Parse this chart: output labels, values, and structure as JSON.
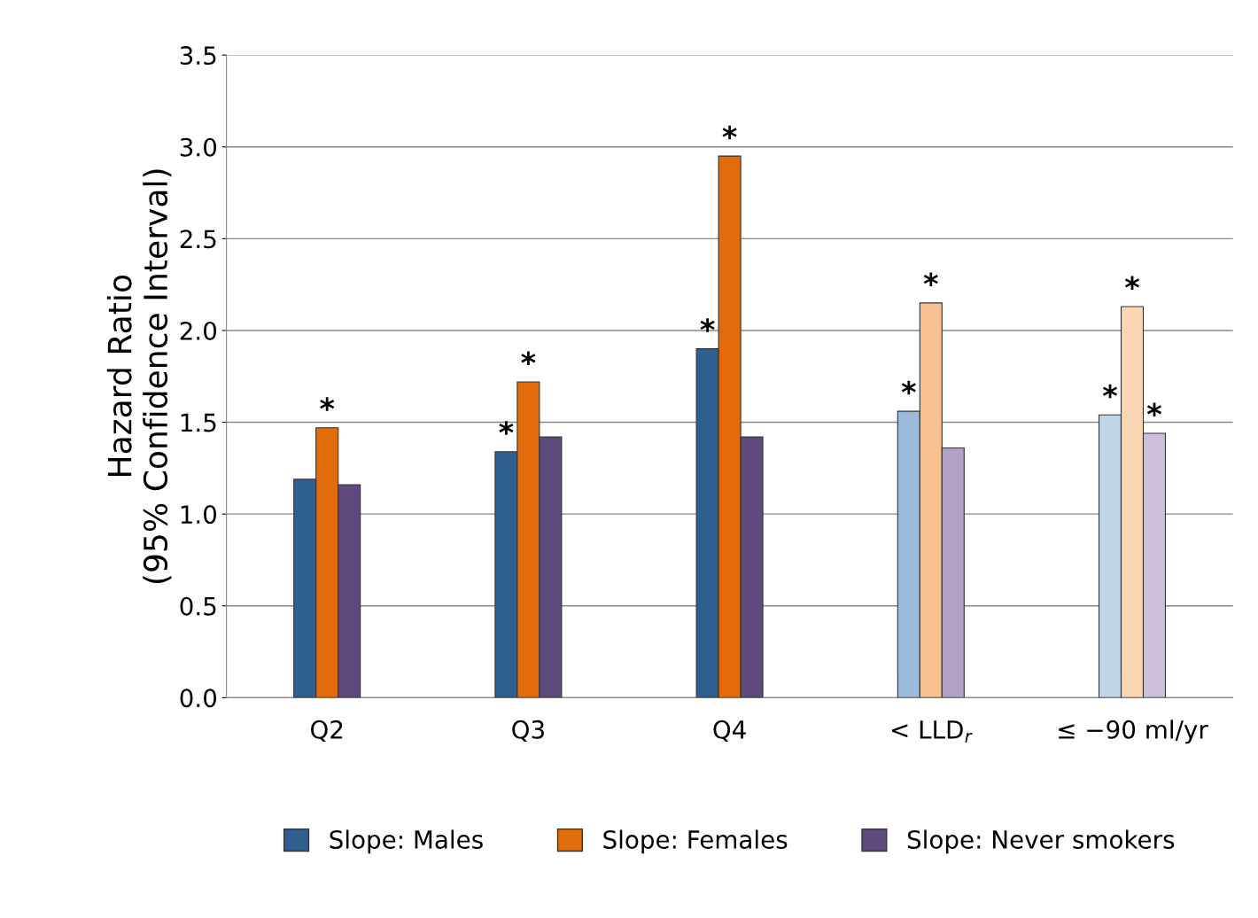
{
  "chart_data": {
    "type": "bar",
    "ylabel": "Hazard Ratio\n(95% Confidence Interval)",
    "categories": [
      "Q2",
      "Q3",
      "Q4",
      "< LLD$_{r}$",
      "≤ −90 ml/yr"
    ],
    "series": [
      {
        "name": "Slope: Males",
        "color": "#2e5f8f",
        "colors": [
          "#2e5f8f",
          "#2e5f8f",
          "#2e5f8f",
          "#9cbbdc",
          "#c0d4ea"
        ],
        "values": [
          1.19,
          1.34,
          1.9,
          1.56,
          1.54
        ],
        "value_labels": [
          null,
          "*",
          "*",
          "*",
          "*"
        ]
      },
      {
        "name": "Slope: Females",
        "color": "#e36c0a",
        "colors": [
          "#e36c0a",
          "#e36c0a",
          "#e36c0a",
          "#f6c08f",
          "#f9d5b2"
        ],
        "values": [
          1.47,
          1.72,
          2.95,
          2.15,
          2.13
        ],
        "value_labels": [
          "*",
          "*",
          "*",
          "*",
          "*"
        ]
      },
      {
        "name": "Slope: Never smokers",
        "color": "#5f4a7d",
        "colors": [
          "#5f4a7d",
          "#5f4a7d",
          "#5f4a7d",
          "#b3a2c8",
          "#cbbfdb"
        ],
        "values": [
          1.16,
          1.42,
          1.42,
          1.36,
          1.44
        ],
        "value_labels": [
          null,
          null,
          null,
          null,
          "*"
        ]
      }
    ],
    "ylim": [
      0,
      3.5
    ],
    "yticks": [
      {
        "value": 0,
        "label": "0.0"
      },
      {
        "value": 0.5,
        "label": "0.5"
      },
      {
        "value": 1,
        "label": "1.0"
      },
      {
        "value": 1.5,
        "label": "1.5"
      },
      {
        "value": 2,
        "label": "2.0"
      },
      {
        "value": 2.5,
        "label": "2.5"
      },
      {
        "value": 3,
        "label": "3.0"
      },
      {
        "value": 3.5,
        "label": "3.5"
      }
    ],
    "grid": "y",
    "legend": "bottom"
  }
}
